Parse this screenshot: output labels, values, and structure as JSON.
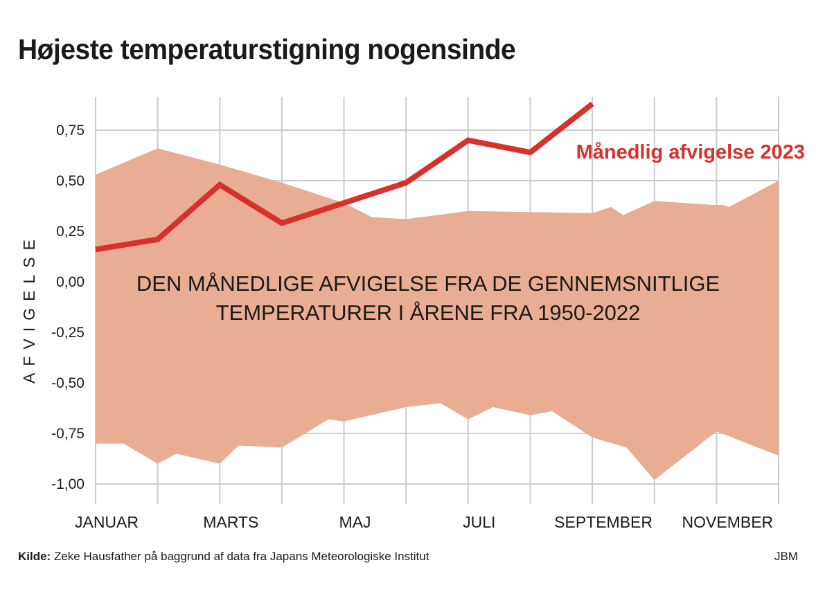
{
  "title": "Højeste temperaturstigning nogensinde",
  "source": {
    "label": "Kilde:",
    "text": "Zeke Hausfather på baggrund af data fra Japans Meteorologiske Institut"
  },
  "credit": "JBM",
  "colors": {
    "band": "#e9ad93",
    "line": "#d6312b",
    "grid": "#cccccc"
  },
  "chart_data": {
    "type": "area",
    "ylabel": "AFVIGELSE",
    "ylim": [
      -1.08,
      0.9
    ],
    "yticks": [
      0.75,
      0.5,
      0.25,
      0.0,
      -0.25,
      -0.5,
      -0.75,
      -1.0
    ],
    "ytick_labels": [
      "0,75",
      "0,50",
      "0,25",
      "0,00",
      "-0,25",
      "-0,50",
      "-0,75",
      "-1,00"
    ],
    "xlim": [
      1,
      12
    ],
    "xticks": [
      1,
      2,
      3,
      4,
      5,
      6,
      7,
      8,
      9,
      10,
      11,
      12
    ],
    "xtick_labels": [
      {
        "x": 1,
        "label": "JANUAR"
      },
      {
        "x": 3,
        "label": "MARTS"
      },
      {
        "x": 5,
        "label": "MAJ"
      },
      {
        "x": 7,
        "label": "JULI"
      },
      {
        "x": 9,
        "label": "SEPTEMBER"
      },
      {
        "x": 11,
        "label": "NOVEMBER"
      }
    ],
    "grid": true,
    "band": {
      "label_lines": [
        "DEN MÅNEDLIGE AFVIGELSE FRA DE GENNEMSNITLIGE",
        "TEMPERATURER I ÅRENE FRA 1950-2022"
      ],
      "upper": [
        [
          1,
          0.53
        ],
        [
          2,
          0.66
        ],
        [
          3,
          0.58
        ],
        [
          4,
          0.49
        ],
        [
          5,
          0.39
        ],
        [
          5.45,
          0.32
        ],
        [
          6,
          0.31
        ],
        [
          7,
          0.35
        ],
        [
          9,
          0.34
        ],
        [
          9.3,
          0.37
        ],
        [
          9.5,
          0.33
        ],
        [
          10,
          0.4
        ],
        [
          10.95,
          0.38
        ],
        [
          11.1,
          0.38
        ],
        [
          11.2,
          0.37
        ],
        [
          12,
          0.5
        ]
      ],
      "lower": [
        [
          1,
          -0.8
        ],
        [
          1.45,
          -0.8
        ],
        [
          2,
          -0.9
        ],
        [
          2.3,
          -0.85
        ],
        [
          3,
          -0.9
        ],
        [
          3.3,
          -0.81
        ],
        [
          4,
          -0.82
        ],
        [
          4.75,
          -0.68
        ],
        [
          5,
          -0.69
        ],
        [
          6,
          -0.62
        ],
        [
          6.55,
          -0.6
        ],
        [
          7,
          -0.68
        ],
        [
          7.4,
          -0.62
        ],
        [
          8,
          -0.66
        ],
        [
          8.35,
          -0.64
        ],
        [
          9,
          -0.77
        ],
        [
          9.55,
          -0.82
        ],
        [
          10,
          -0.98
        ],
        [
          11,
          -0.74
        ],
        [
          12,
          -0.86
        ]
      ]
    },
    "series": [
      {
        "name": "Månedlig afvigelse 2023",
        "x": [
          1,
          2,
          3,
          4,
          5,
          6,
          7,
          8,
          9
        ],
        "values": [
          0.16,
          0.21,
          0.48,
          0.29,
          0.39,
          0.49,
          0.7,
          0.64,
          0.88
        ]
      }
    ]
  }
}
